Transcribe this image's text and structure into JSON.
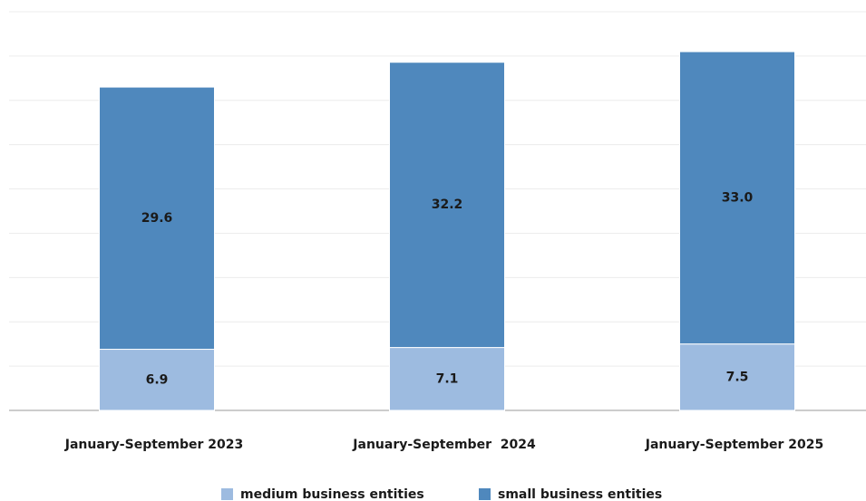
{
  "chart_data": {
    "type": "stacked_bar",
    "categories": [
      "January-September 2023",
      "January-September  2024",
      "January-September 2025"
    ],
    "series": [
      {
        "name": "medium business entities",
        "color": "#9dbbe0",
        "values": [
          6.9,
          7.1,
          7.5
        ]
      },
      {
        "name": "small business entities",
        "color": "#4f88bd",
        "values": [
          29.6,
          32.2,
          33.0
        ],
        "value_labels": [
          "29.6",
          "32.2",
          "33.0"
        ]
      }
    ],
    "ylim": [
      0,
      45
    ],
    "yticks": [
      0,
      5,
      10,
      15,
      20,
      25,
      30,
      35,
      40,
      45
    ],
    "grid": true,
    "legend": "bottom"
  }
}
